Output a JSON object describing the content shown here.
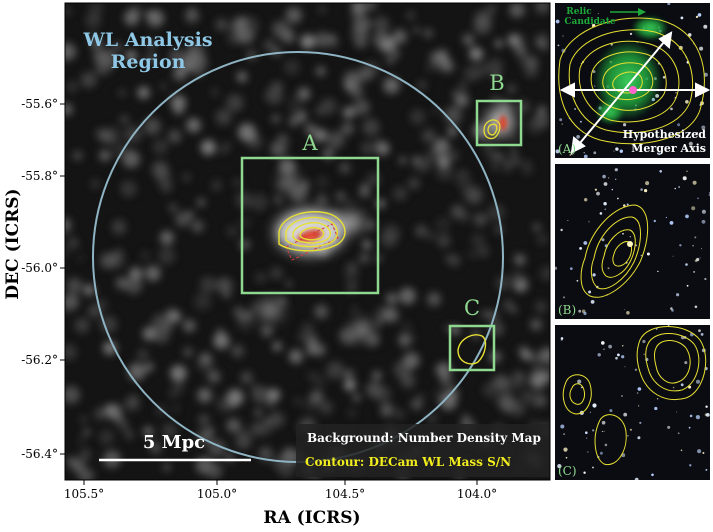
{
  "main_panel": {
    "title_line1": "WL Analysis",
    "title_line2": "Region",
    "label_A": "A",
    "label_B": "B",
    "label_C": "C",
    "scale_bar": "5 Mpc",
    "legend_background": "Background: Number Density Map",
    "legend_contour": "Contour: DECam WL Mass S/N",
    "x_axis_label": "RA (ICRS)",
    "y_axis_label": "DEC (ICRS)",
    "x_ticks": [
      "105.5°",
      "105.0°",
      "104.5°",
      "104.0°"
    ],
    "y_ticks": [
      "-55.6°",
      "-55.8°",
      "-56.0°",
      "-56.2°",
      "-56.4°"
    ]
  },
  "inset_A": {
    "relic_line1": "Relic",
    "relic_line2": "Candidate",
    "merger_line1": "Hypothesized",
    "merger_line2": "Merger Axis",
    "tag": "(A)"
  },
  "inset_B": {
    "tag": "(B)"
  },
  "inset_C": {
    "tag": "(C)"
  },
  "colors": {
    "region_circle": "#8fb4c4",
    "title_text": "#8fc8e6",
    "box_green": "#8fd88f",
    "contour_yellow": "#e8e032",
    "legend_yellow": "#f2ee1e",
    "relic_green": "#1fa83a",
    "peak_red": "#c8321e"
  }
}
